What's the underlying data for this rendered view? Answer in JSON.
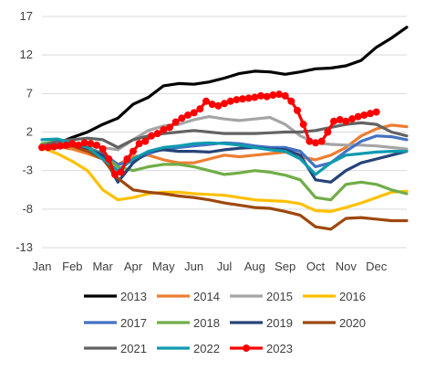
{
  "chart_data": {
    "type": "line",
    "ylim": [
      -13,
      17
    ],
    "yticks": [
      17,
      12,
      7,
      2,
      -3,
      -8,
      -13
    ],
    "grid": "horizontal",
    "legend_position": "bottom",
    "x_months": [
      "Jan",
      "Feb",
      "Mar",
      "Apr",
      "May",
      "Jun",
      "Jul",
      "Aug",
      "Sep",
      "Oct",
      "Nov",
      "Dec"
    ],
    "series": [
      {
        "name": "2013",
        "color": "#000000",
        "marker": false,
        "values": [
          [
            0,
            0
          ],
          [
            0.5,
            0.5
          ],
          [
            1.0,
            1.3
          ],
          [
            1.5,
            2.0
          ],
          [
            2.0,
            3.0
          ],
          [
            2.5,
            3.8
          ],
          [
            3.0,
            5.6
          ],
          [
            3.5,
            6.5
          ],
          [
            4.0,
            8.0
          ],
          [
            4.5,
            8.3
          ],
          [
            5.0,
            8.2
          ],
          [
            5.5,
            8.5
          ],
          [
            6.0,
            9.0
          ],
          [
            6.5,
            9.6
          ],
          [
            7.0,
            9.9
          ],
          [
            7.5,
            9.8
          ],
          [
            8.0,
            9.5
          ],
          [
            8.5,
            9.8
          ],
          [
            9.0,
            10.2
          ],
          [
            9.5,
            10.3
          ],
          [
            10.0,
            10.6
          ],
          [
            10.5,
            11.3
          ],
          [
            11.0,
            13.0
          ],
          [
            11.5,
            14.2
          ],
          [
            12.0,
            15.6
          ]
        ]
      },
      {
        "name": "2014",
        "color": "#ed7d31",
        "marker": false,
        "values": [
          [
            0,
            0.2
          ],
          [
            0.5,
            0.1
          ],
          [
            1.0,
            -0.2
          ],
          [
            1.5,
            -0.8
          ],
          [
            2.0,
            -1.5
          ],
          [
            2.5,
            -2.2
          ],
          [
            3.0,
            -1.2
          ],
          [
            3.5,
            -1.0
          ],
          [
            4.0,
            -1.6
          ],
          [
            4.5,
            -2.0
          ],
          [
            5.0,
            -2.0
          ],
          [
            5.5,
            -1.5
          ],
          [
            6.0,
            -1.0
          ],
          [
            6.5,
            -1.2
          ],
          [
            7.0,
            -1.0
          ],
          [
            7.5,
            -0.8
          ],
          [
            8.0,
            -0.6
          ],
          [
            8.5,
            -1.2
          ],
          [
            9.0,
            -1.6
          ],
          [
            9.5,
            -1.0
          ],
          [
            10.0,
            0.0
          ],
          [
            10.5,
            1.5
          ],
          [
            11.0,
            2.4
          ],
          [
            11.5,
            2.9
          ],
          [
            12.0,
            2.7
          ]
        ]
      },
      {
        "name": "2015",
        "color": "#a5a5a5",
        "marker": false,
        "values": [
          [
            0,
            0.5
          ],
          [
            0.5,
            0.6
          ],
          [
            1.0,
            0.3
          ],
          [
            1.5,
            0.2
          ],
          [
            2.0,
            0.0
          ],
          [
            2.5,
            -0.3
          ],
          [
            3.0,
            1.0
          ],
          [
            3.5,
            2.2
          ],
          [
            4.0,
            2.8
          ],
          [
            4.5,
            3.0
          ],
          [
            5.0,
            3.6
          ],
          [
            5.5,
            4.0
          ],
          [
            6.0,
            3.7
          ],
          [
            6.5,
            3.5
          ],
          [
            7.0,
            3.7
          ],
          [
            7.5,
            3.9
          ],
          [
            8.0,
            3.0
          ],
          [
            8.5,
            1.5
          ],
          [
            9.0,
            0.6
          ],
          [
            9.5,
            0.4
          ],
          [
            10.0,
            0.3
          ],
          [
            10.5,
            0.3
          ],
          [
            11.0,
            0.2
          ],
          [
            11.5,
            0.0
          ],
          [
            12.0,
            -0.2
          ]
        ]
      },
      {
        "name": "2016",
        "color": "#ffc000",
        "marker": false,
        "values": [
          [
            0,
            0.0
          ],
          [
            0.5,
            -0.8
          ],
          [
            1.0,
            -1.8
          ],
          [
            1.5,
            -3.0
          ],
          [
            2.0,
            -5.5
          ],
          [
            2.5,
            -6.8
          ],
          [
            3.0,
            -6.5
          ],
          [
            3.5,
            -6.0
          ],
          [
            4.0,
            -5.8
          ],
          [
            4.5,
            -5.8
          ],
          [
            5.0,
            -6.0
          ],
          [
            5.5,
            -6.1
          ],
          [
            6.0,
            -6.2
          ],
          [
            6.5,
            -6.5
          ],
          [
            7.0,
            -6.8
          ],
          [
            7.5,
            -6.9
          ],
          [
            8.0,
            -7.0
          ],
          [
            8.5,
            -7.3
          ],
          [
            9.0,
            -8.2
          ],
          [
            9.5,
            -8.3
          ],
          [
            10.0,
            -7.8
          ],
          [
            10.5,
            -7.2
          ],
          [
            11.0,
            -6.5
          ],
          [
            11.5,
            -5.8
          ],
          [
            12.0,
            -5.7
          ]
        ]
      },
      {
        "name": "2017",
        "color": "#4472c4",
        "marker": false,
        "values": [
          [
            0,
            0.2
          ],
          [
            0.5,
            0.4
          ],
          [
            1.0,
            0.5
          ],
          [
            1.5,
            0.0
          ],
          [
            2.0,
            -0.8
          ],
          [
            2.5,
            -2.2
          ],
          [
            3.0,
            -1.8
          ],
          [
            3.5,
            -0.8
          ],
          [
            4.0,
            -0.2
          ],
          [
            4.5,
            0.0
          ],
          [
            5.0,
            0.2
          ],
          [
            5.5,
            0.4
          ],
          [
            6.0,
            0.6
          ],
          [
            6.5,
            0.5
          ],
          [
            7.0,
            0.2
          ],
          [
            7.5,
            0.0
          ],
          [
            8.0,
            0.0
          ],
          [
            8.5,
            -0.5
          ],
          [
            9.0,
            -2.5
          ],
          [
            9.5,
            -2.0
          ],
          [
            10.0,
            -0.5
          ],
          [
            10.5,
            0.8
          ],
          [
            11.0,
            1.5
          ],
          [
            11.5,
            1.4
          ],
          [
            12.0,
            1.0
          ]
        ]
      },
      {
        "name": "2018",
        "color": "#70ad47",
        "marker": false,
        "values": [
          [
            0,
            0.5
          ],
          [
            0.5,
            0.8
          ],
          [
            1.0,
            0.6
          ],
          [
            1.5,
            0.0
          ],
          [
            2.0,
            -1.0
          ],
          [
            2.5,
            -2.5
          ],
          [
            3.0,
            -3.0
          ],
          [
            3.5,
            -2.5
          ],
          [
            4.0,
            -2.2
          ],
          [
            4.5,
            -2.2
          ],
          [
            5.0,
            -2.5
          ],
          [
            5.5,
            -3.0
          ],
          [
            6.0,
            -3.5
          ],
          [
            6.5,
            -3.3
          ],
          [
            7.0,
            -3.0
          ],
          [
            7.5,
            -3.2
          ],
          [
            8.0,
            -3.6
          ],
          [
            8.5,
            -4.2
          ],
          [
            9.0,
            -6.5
          ],
          [
            9.5,
            -6.8
          ],
          [
            10.0,
            -4.8
          ],
          [
            10.5,
            -4.5
          ],
          [
            11.0,
            -4.8
          ],
          [
            11.5,
            -5.5
          ],
          [
            12.0,
            -6.0
          ]
        ]
      },
      {
        "name": "2019",
        "color": "#264478",
        "marker": false,
        "values": [
          [
            0,
            0.0
          ],
          [
            0.5,
            0.2
          ],
          [
            1.0,
            0.3
          ],
          [
            1.5,
            -0.2
          ],
          [
            2.0,
            -1.0
          ],
          [
            2.5,
            -4.5
          ],
          [
            3.0,
            -2.0
          ],
          [
            3.5,
            -0.5
          ],
          [
            4.0,
            -0.3
          ],
          [
            4.5,
            -0.5
          ],
          [
            5.0,
            -0.5
          ],
          [
            5.5,
            -0.6
          ],
          [
            6.0,
            -0.3
          ],
          [
            6.5,
            -0.1
          ],
          [
            7.0,
            0.0
          ],
          [
            7.5,
            -0.2
          ],
          [
            8.0,
            -0.3
          ],
          [
            8.5,
            -1.0
          ],
          [
            9.0,
            -4.2
          ],
          [
            9.5,
            -4.5
          ],
          [
            10.0,
            -3.0
          ],
          [
            10.5,
            -2.0
          ],
          [
            11.0,
            -1.5
          ],
          [
            11.5,
            -1.0
          ],
          [
            12.0,
            -0.5
          ]
        ]
      },
      {
        "name": "2020",
        "color": "#9e480e",
        "marker": false,
        "values": [
          [
            0,
            0.0
          ],
          [
            0.5,
            0.0
          ],
          [
            1.0,
            0.2
          ],
          [
            1.5,
            -0.5
          ],
          [
            2.0,
            -1.5
          ],
          [
            2.5,
            -4.0
          ],
          [
            3.0,
            -5.5
          ],
          [
            3.5,
            -5.8
          ],
          [
            4.0,
            -6.0
          ],
          [
            4.5,
            -6.3
          ],
          [
            5.0,
            -6.5
          ],
          [
            5.5,
            -6.8
          ],
          [
            6.0,
            -7.2
          ],
          [
            6.5,
            -7.5
          ],
          [
            7.0,
            -7.8
          ],
          [
            7.5,
            -7.9
          ],
          [
            8.0,
            -8.3
          ],
          [
            8.5,
            -8.8
          ],
          [
            9.0,
            -10.3
          ],
          [
            9.5,
            -10.6
          ],
          [
            10.0,
            -9.2
          ],
          [
            10.5,
            -9.1
          ],
          [
            11.0,
            -9.3
          ],
          [
            11.5,
            -9.5
          ],
          [
            12.0,
            -9.5
          ]
        ]
      },
      {
        "name": "2021",
        "color": "#636363",
        "marker": false,
        "values": [
          [
            0,
            0.2
          ],
          [
            0.5,
            0.8
          ],
          [
            1.0,
            1.0
          ],
          [
            1.5,
            1.2
          ],
          [
            2.0,
            1.0
          ],
          [
            2.5,
            0.0
          ],
          [
            3.0,
            1.0
          ],
          [
            3.5,
            1.5
          ],
          [
            4.0,
            1.8
          ],
          [
            4.5,
            2.0
          ],
          [
            5.0,
            2.2
          ],
          [
            5.5,
            2.0
          ],
          [
            6.0,
            1.8
          ],
          [
            6.5,
            1.8
          ],
          [
            7.0,
            1.8
          ],
          [
            7.5,
            1.9
          ],
          [
            8.0,
            2.0
          ],
          [
            8.5,
            2.0
          ],
          [
            9.0,
            2.2
          ],
          [
            9.5,
            2.6
          ],
          [
            10.0,
            3.0
          ],
          [
            10.5,
            3.2
          ],
          [
            11.0,
            3.0
          ],
          [
            11.5,
            2.0
          ],
          [
            12.0,
            1.5
          ]
        ]
      },
      {
        "name": "2022",
        "color": "#0e9bb0",
        "marker": false,
        "values": [
          [
            0,
            1.0
          ],
          [
            0.5,
            1.1
          ],
          [
            1.0,
            0.6
          ],
          [
            1.5,
            0.0
          ],
          [
            2.0,
            -1.5
          ],
          [
            2.5,
            -3.0
          ],
          [
            3.0,
            -1.5
          ],
          [
            3.5,
            -0.5
          ],
          [
            4.0,
            0.0
          ],
          [
            4.5,
            0.2
          ],
          [
            5.0,
            0.5
          ],
          [
            5.5,
            0.6
          ],
          [
            6.0,
            0.5
          ],
          [
            6.5,
            0.3
          ],
          [
            7.0,
            0.0
          ],
          [
            7.5,
            -0.3
          ],
          [
            8.0,
            -0.5
          ],
          [
            8.5,
            -1.5
          ],
          [
            9.0,
            -3.5
          ],
          [
            9.5,
            -2.0
          ],
          [
            10.0,
            -1.0
          ],
          [
            10.5,
            -0.8
          ],
          [
            11.0,
            -0.6
          ],
          [
            11.5,
            -0.5
          ],
          [
            12.0,
            -0.5
          ]
        ]
      },
      {
        "name": "2023",
        "color": "#ff0000",
        "marker": true,
        "values": [
          [
            0,
            0.0
          ],
          [
            0.2,
            0.0
          ],
          [
            0.4,
            0.1
          ],
          [
            0.6,
            0.2
          ],
          [
            0.8,
            0.3
          ],
          [
            1.0,
            0.5
          ],
          [
            1.2,
            0.3
          ],
          [
            1.4,
            0.6
          ],
          [
            1.6,
            0.5
          ],
          [
            1.8,
            0.3
          ],
          [
            2.0,
            -0.2
          ],
          [
            2.2,
            -1.5
          ],
          [
            2.4,
            -3.5
          ],
          [
            2.6,
            -3.2
          ],
          [
            2.8,
            -1.5
          ],
          [
            3.0,
            -0.5
          ],
          [
            3.2,
            0.5
          ],
          [
            3.4,
            0.8
          ],
          [
            3.6,
            1.5
          ],
          [
            3.8,
            1.8
          ],
          [
            4.0,
            2.3
          ],
          [
            4.2,
            2.6
          ],
          [
            4.4,
            3.3
          ],
          [
            4.6,
            3.8
          ],
          [
            4.8,
            4.2
          ],
          [
            5.0,
            4.5
          ],
          [
            5.2,
            5.0
          ],
          [
            5.4,
            6.0
          ],
          [
            5.6,
            5.6
          ],
          [
            5.8,
            5.4
          ],
          [
            6.0,
            5.7
          ],
          [
            6.2,
            6.0
          ],
          [
            6.4,
            6.2
          ],
          [
            6.6,
            6.3
          ],
          [
            6.8,
            6.4
          ],
          [
            7.0,
            6.5
          ],
          [
            7.2,
            6.7
          ],
          [
            7.4,
            6.6
          ],
          [
            7.6,
            6.8
          ],
          [
            7.8,
            6.9
          ],
          [
            8.0,
            6.7
          ],
          [
            8.2,
            6.0
          ],
          [
            8.4,
            4.8
          ],
          [
            8.6,
            3.0
          ],
          [
            8.8,
            0.8
          ],
          [
            9.0,
            0.6
          ],
          [
            9.2,
            0.8
          ],
          [
            9.4,
            2.0
          ],
          [
            9.6,
            3.4
          ],
          [
            9.8,
            3.6
          ],
          [
            10.0,
            3.4
          ],
          [
            10.2,
            3.7
          ],
          [
            10.4,
            4.0
          ],
          [
            10.6,
            4.2
          ],
          [
            10.8,
            4.4
          ],
          [
            11.0,
            4.6
          ]
        ]
      }
    ]
  }
}
